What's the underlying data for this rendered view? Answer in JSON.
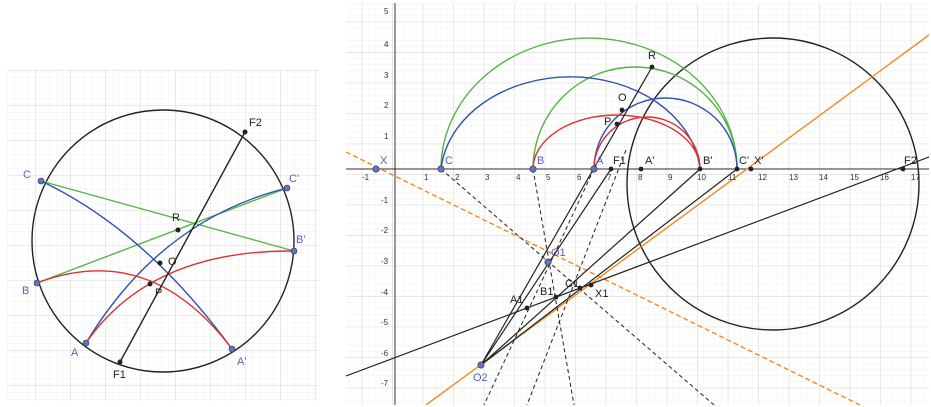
{
  "left_panel": {
    "points": {
      "C": "C",
      "C_prime": "C'",
      "B": "B",
      "B_prime": "B'",
      "A": "A",
      "A_prime": "A'",
      "F1": "F1",
      "F2": "F2",
      "R": "R",
      "O": "O",
      "P": "P"
    }
  },
  "right_panel": {
    "x_ticks": [
      "-1",
      "1",
      "2",
      "3",
      "4",
      "5",
      "6",
      "7",
      "8",
      "9",
      "10",
      "11",
      "12",
      "13",
      "14",
      "15",
      "16",
      "17"
    ],
    "y_ticks": [
      "5",
      "4",
      "3",
      "2",
      "1",
      "-1",
      "-2",
      "-3",
      "-4",
      "-5",
      "-6",
      "-7"
    ],
    "points": {
      "X": "X",
      "C": "C",
      "B": "B",
      "A": "A",
      "F1": "F1",
      "A_prime": "A'",
      "B_prime": "B'",
      "C_prime": "C'",
      "X_prime": "X'",
      "F2": "F2",
      "R": "R",
      "O": "O",
      "P": "P",
      "O1": "O1",
      "A1": "A1",
      "B1": "B1",
      "C1": "C1",
      "X1": "X1",
      "O2": "O2"
    }
  },
  "colors": {
    "circle": "#222222",
    "red": "#e03030",
    "blue": "#3050b0",
    "green": "#55b545",
    "orange": "#f08a20",
    "free_point": "#6670c8",
    "grid_minor": "#ececec",
    "grid_major": "#d4d4d4"
  }
}
